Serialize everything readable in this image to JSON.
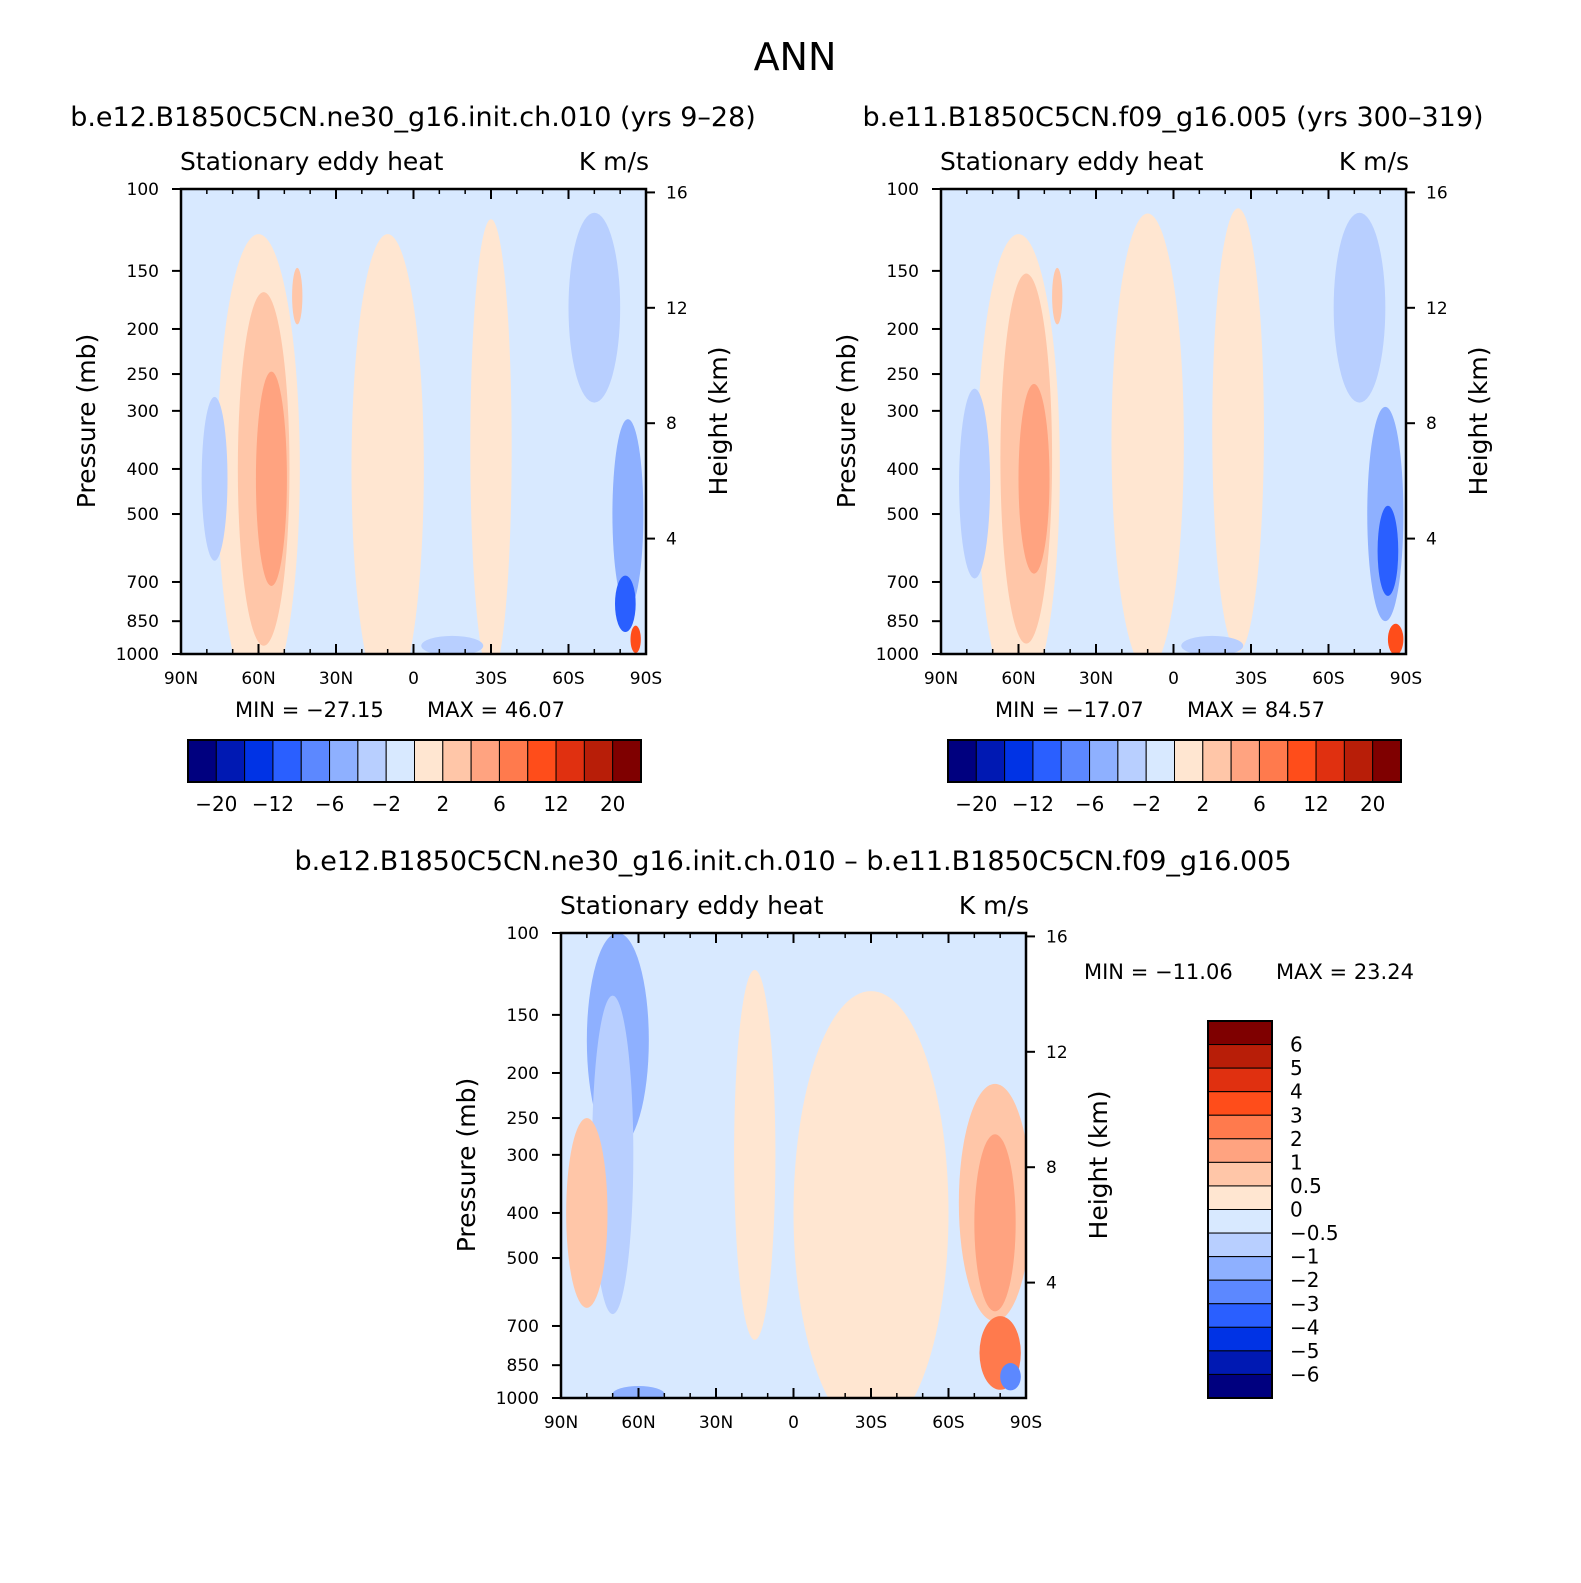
{
  "figure_title": "ANN",
  "palette": {
    "panel_levels": [
      "#00007f",
      "#0019b3",
      "#0033e5",
      "#2a5fff",
      "#5c88ff",
      "#8eb0ff",
      "#b8cfff",
      "#d8e9ff",
      "#ffe6d1",
      "#ffc6a8",
      "#ffa380",
      "#ff7a4d",
      "#ff4d1a",
      "#e03010",
      "#b81e08",
      "#7f0000"
    ],
    "panel_tick_labels": [
      "−20",
      "−12",
      "−6",
      "−2",
      "2",
      "6",
      "12",
      "20"
    ],
    "diff_levels": [
      "#00007f",
      "#0019b3",
      "#0033e5",
      "#2a5fff",
      "#5c88ff",
      "#8eb0ff",
      "#b8cfff",
      "#d8e9ff",
      "#ffe6d1",
      "#ffc6a8",
      "#ffa380",
      "#ff7a4d",
      "#ff4d1a",
      "#e03010",
      "#b81e08",
      "#7f0000"
    ],
    "diff_tick_labels": [
      "6",
      "5",
      "4",
      "3",
      "2",
      "1",
      "0.5",
      "0",
      "−0.5",
      "−1",
      "−2",
      "−3",
      "−4",
      "−5",
      "−6"
    ]
  },
  "chart_data": [
    {
      "type": "heatmap",
      "title": "b.e12.B1850C5CN.ne30_g16.init.ch.010 (yrs 9–28)",
      "left_subtitle": "Stationary eddy heat",
      "right_subtitle": "K m/s",
      "xlabel": "",
      "ylabel": "Pressure (mb)",
      "y2label": "Height (km)",
      "x_ticks": [
        "90N",
        "60N",
        "30N",
        "0",
        "30S",
        "60S",
        "90S"
      ],
      "x_tick_values": [
        90,
        60,
        30,
        0,
        -30,
        -60,
        -90
      ],
      "y_ticks": [
        "100",
        "150",
        "200",
        "250",
        "300",
        "400",
        "500",
        "700",
        "850",
        "1000"
      ],
      "y_tick_values": [
        100,
        150,
        200,
        250,
        300,
        400,
        500,
        700,
        850,
        1000
      ],
      "y2_ticks": [
        "16",
        "12",
        "8",
        "4"
      ],
      "y2_tick_values": [
        16,
        12,
        8,
        4
      ],
      "y_scale": "log",
      "ylim": [
        1000,
        100
      ],
      "xlim": [
        90,
        -90
      ],
      "min_label": "MIN = −27.15",
      "max_label": "MAX =  46.07",
      "min": -27.15,
      "max": 46.07,
      "colorbar_levels": [
        -20,
        -16,
        -12,
        -8,
        -6,
        -4,
        -2,
        0,
        2,
        4,
        6,
        8,
        12,
        16,
        20
      ]
    },
    {
      "type": "heatmap",
      "title": "b.e11.B1850C5CN.f09_g16.005 (yrs 300–319)",
      "left_subtitle": "Stationary eddy heat",
      "right_subtitle": "K m/s",
      "xlabel": "",
      "ylabel": "Pressure (mb)",
      "y2label": "Height (km)",
      "x_ticks": [
        "90N",
        "60N",
        "30N",
        "0",
        "30S",
        "60S",
        "90S"
      ],
      "x_tick_values": [
        90,
        60,
        30,
        0,
        -30,
        -60,
        -90
      ],
      "y_ticks": [
        "100",
        "150",
        "200",
        "250",
        "300",
        "400",
        "500",
        "700",
        "850",
        "1000"
      ],
      "y_tick_values": [
        100,
        150,
        200,
        250,
        300,
        400,
        500,
        700,
        850,
        1000
      ],
      "y2_ticks": [
        "16",
        "12",
        "8",
        "4"
      ],
      "y2_tick_values": [
        16,
        12,
        8,
        4
      ],
      "y_scale": "log",
      "ylim": [
        1000,
        100
      ],
      "xlim": [
        90,
        -90
      ],
      "min_label": "MIN = −17.07",
      "max_label": "MAX =  84.57",
      "min": -17.07,
      "max": 84.57,
      "colorbar_levels": [
        -20,
        -16,
        -12,
        -8,
        -6,
        -4,
        -2,
        0,
        2,
        4,
        6,
        8,
        12,
        16,
        20
      ]
    },
    {
      "type": "heatmap",
      "title": "b.e12.B1850C5CN.ne30_g16.init.ch.010 – b.e11.B1850C5CN.f09_g16.005",
      "left_subtitle": "Stationary eddy heat",
      "right_subtitle": "K m/s",
      "xlabel": "",
      "ylabel": "Pressure (mb)",
      "y2label": "Height (km)",
      "x_ticks": [
        "90N",
        "60N",
        "30N",
        "0",
        "30S",
        "60S",
        "90S"
      ],
      "x_tick_values": [
        90,
        60,
        30,
        0,
        -30,
        -60,
        -90
      ],
      "y_ticks": [
        "100",
        "150",
        "200",
        "250",
        "300",
        "400",
        "500",
        "700",
        "850",
        "1000"
      ],
      "y_tick_values": [
        100,
        150,
        200,
        250,
        300,
        400,
        500,
        700,
        850,
        1000
      ],
      "y2_ticks": [
        "16",
        "12",
        "8",
        "4"
      ],
      "y2_tick_values": [
        16,
        12,
        8,
        4
      ],
      "y_scale": "log",
      "ylim": [
        1000,
        100
      ],
      "xlim": [
        90,
        -90
      ],
      "min_label": "MIN = −11.06",
      "max_label": "MAX =  23.24",
      "min": -11.06,
      "max": 23.24,
      "colorbar_levels": [
        -6,
        -5,
        -4,
        -3,
        -2,
        -1,
        -0.5,
        0,
        0.5,
        1,
        2,
        3,
        4,
        5,
        6
      ]
    }
  ]
}
